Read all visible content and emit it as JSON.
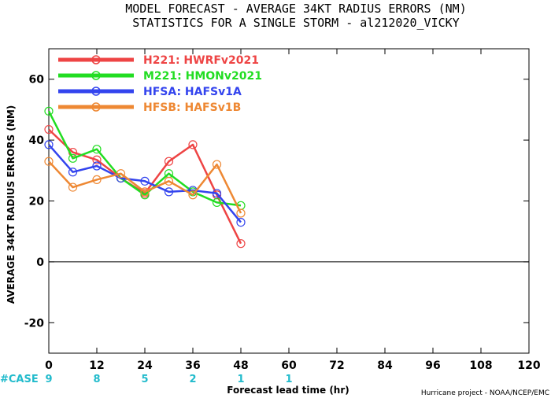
{
  "chart_data": {
    "type": "line",
    "title": "MODEL FORECAST - AVERAGE 34KT RADIUS ERRORS (NM)",
    "subtitle": "STATISTICS FOR A SINGLE STORM - al212020_VICKY",
    "xlabel": "Forecast lead time (hr)",
    "ylabel": "AVERAGE 34KT RADIUS ERRORS (NM)",
    "xlim": [
      0,
      120
    ],
    "ylim": [
      -30,
      70
    ],
    "x_ticks": [
      0,
      12,
      24,
      36,
      48,
      60,
      72,
      84,
      96,
      108,
      120
    ],
    "y_ticks": [
      -20,
      0,
      20,
      40,
      60
    ],
    "grid": false,
    "legend_position": "top-left",
    "zero_line": true,
    "series": [
      {
        "name": "H221: HWRFv2021",
        "color": "#ee4444",
        "x": [
          0,
          6,
          12,
          18,
          24,
          30,
          36,
          42,
          48
        ],
        "y": [
          43.5,
          36,
          33.5,
          27.5,
          22.5,
          33,
          38.5,
          22,
          6
        ]
      },
      {
        "name": "M221: HMONv2021",
        "color": "#22dd22",
        "x": [
          0,
          6,
          12,
          18,
          24,
          30,
          36,
          42,
          48
        ],
        "y": [
          49.5,
          34,
          37,
          27.5,
          22,
          29,
          23,
          19.5,
          18.5
        ]
      },
      {
        "name": "HFSA: HAFSv1A",
        "color": "#3344ee",
        "x": [
          0,
          6,
          12,
          18,
          24,
          30,
          36,
          42,
          48
        ],
        "y": [
          38.5,
          29.5,
          31.5,
          27.5,
          26.5,
          23,
          23.5,
          22.5,
          13
        ]
      },
      {
        "name": "HFSB: HAFSv1B",
        "color": "#ee8833",
        "x": [
          0,
          6,
          12,
          18,
          24,
          30,
          36,
          42,
          48
        ],
        "y": [
          33,
          24.5,
          27,
          29,
          23,
          26.5,
          22,
          32,
          16
        ]
      }
    ],
    "case_label": "#CASE",
    "case_color": "#22bbcc",
    "cases": [
      {
        "x": 0,
        "count": "9"
      },
      {
        "x": 12,
        "count": "8"
      },
      {
        "x": 24,
        "count": "5"
      },
      {
        "x": 36,
        "count": "2"
      },
      {
        "x": 48,
        "count": "1"
      },
      {
        "x": 60,
        "count": "1"
      }
    ],
    "credit": "Hurricane project - NOAA/NCEP/EMC"
  }
}
